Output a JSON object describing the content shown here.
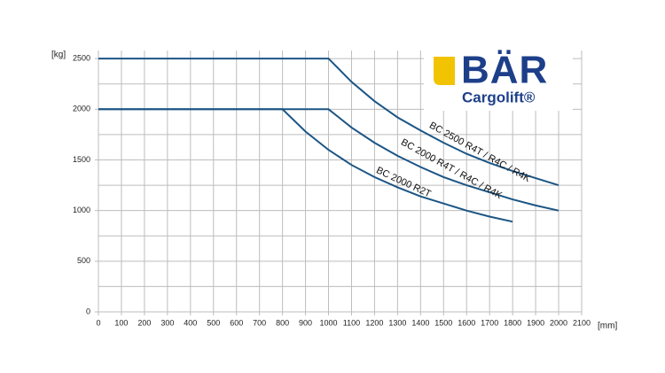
{
  "chart_data": {
    "type": "line",
    "y_label": "[kg]",
    "x_label": "[mm]",
    "xlim": [
      0,
      2100
    ],
    "ylim": [
      0,
      2580
    ],
    "xticks": [
      0,
      100,
      200,
      300,
      400,
      500,
      600,
      700,
      800,
      900,
      1000,
      1100,
      1200,
      1300,
      1400,
      1500,
      1600,
      1700,
      1800,
      1900,
      2000,
      2100
    ],
    "yticks": [
      0,
      500,
      1000,
      1500,
      2000,
      2500
    ],
    "y_minor_grid": [
      250,
      750,
      1250,
      1750,
      2250
    ],
    "grid": true,
    "series": [
      {
        "name": "BC 2500 R4T / R4C / R4K",
        "color": "#1b5585",
        "x": [
          0,
          1000,
          1100,
          1200,
          1300,
          1400,
          1500,
          1600,
          1700,
          1800,
          1900,
          2000
        ],
        "values": [
          2500,
          2500,
          2270,
          2080,
          1920,
          1790,
          1670,
          1560,
          1470,
          1390,
          1320,
          1250
        ]
      },
      {
        "name": "BC 2000 R4T / R4C / R4K",
        "color": "#1b5585",
        "x": [
          0,
          1000,
          1100,
          1200,
          1300,
          1400,
          1500,
          1600,
          1700,
          1800,
          1900,
          2000
        ],
        "values": [
          2000,
          2000,
          1820,
          1670,
          1540,
          1430,
          1330,
          1250,
          1180,
          1110,
          1050,
          1000
        ]
      },
      {
        "name": "BC 2000 R2T",
        "color": "#1b5585",
        "x": [
          0,
          800,
          900,
          1000,
          1100,
          1200,
          1300,
          1400,
          1500,
          1600,
          1700,
          1800
        ],
        "values": [
          2000,
          2000,
          1780,
          1600,
          1450,
          1330,
          1230,
          1140,
          1070,
          1000,
          940,
          890
        ]
      }
    ],
    "logo": {
      "name": "BÄR",
      "tagline": "Cargolift®"
    }
  }
}
